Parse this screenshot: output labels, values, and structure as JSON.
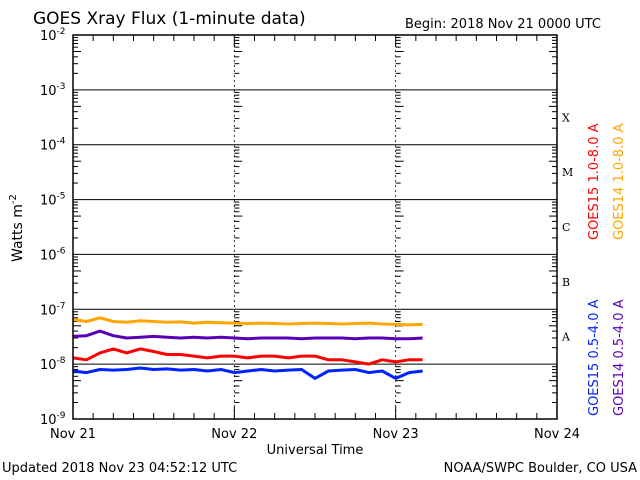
{
  "chart_data": {
    "type": "line",
    "title": "GOES Xray Flux (1-minute data)",
    "begin_label": "Begin:  2018 Nov 21 0000 UTC",
    "xlabel": "Universal Time",
    "ylabel": "Watts m",
    "ylabel_sup": "-2",
    "x_ticks": [
      "Nov 21",
      "Nov 22",
      "Nov 23",
      "Nov 24"
    ],
    "x_range_hours": [
      0,
      72
    ],
    "y_scale": "log",
    "ylim": [
      1e-09,
      0.01
    ],
    "y_ticks": [
      {
        "base": "10",
        "exp": "-2"
      },
      {
        "base": "10",
        "exp": "-3"
      },
      {
        "base": "10",
        "exp": "-4"
      },
      {
        "base": "10",
        "exp": "-5"
      },
      {
        "base": "10",
        "exp": "-6"
      },
      {
        "base": "10",
        "exp": "-7"
      },
      {
        "base": "10",
        "exp": "-8"
      },
      {
        "base": "10",
        "exp": "-9"
      }
    ],
    "flare_classes": [
      "X",
      "M",
      "C",
      "B",
      "A"
    ],
    "grid": true,
    "x_hours": [
      0,
      2,
      4,
      6,
      8,
      10,
      12,
      14,
      16,
      18,
      20,
      22,
      24,
      26,
      28,
      30,
      32,
      34,
      36,
      38,
      40,
      42,
      44,
      46,
      48,
      50,
      52
    ],
    "series": [
      {
        "name": "GOES15 1.0-8.0 A",
        "color": "#ff0000",
        "values": [
          1.3e-08,
          1.2e-08,
          1.6e-08,
          1.9e-08,
          1.6e-08,
          1.9e-08,
          1.7e-08,
          1.5e-08,
          1.5e-08,
          1.4e-08,
          1.3e-08,
          1.4e-08,
          1.4e-08,
          1.3e-08,
          1.4e-08,
          1.4e-08,
          1.3e-08,
          1.4e-08,
          1.4e-08,
          1.2e-08,
          1.2e-08,
          1.1e-08,
          1e-08,
          1.2e-08,
          1.1e-08,
          1.2e-08,
          1.2e-08
        ]
      },
      {
        "name": "GOES14 1.0-8.0 A",
        "color": "#ffa500",
        "values": [
          6.5e-08,
          6e-08,
          7e-08,
          6e-08,
          5.8e-08,
          6.2e-08,
          6e-08,
          5.8e-08,
          5.9e-08,
          5.6e-08,
          5.8e-08,
          5.7e-08,
          5.6e-08,
          5.5e-08,
          5.6e-08,
          5.5e-08,
          5.4e-08,
          5.5e-08,
          5.6e-08,
          5.5e-08,
          5.4e-08,
          5.5e-08,
          5.6e-08,
          5.4e-08,
          5.3e-08,
          5.2e-08,
          5.3e-08
        ]
      },
      {
        "name": "GOES15 0.5-4.0 A",
        "color": "#0022ff",
        "values": [
          7.5e-09,
          7e-09,
          8e-09,
          7.8e-09,
          8e-09,
          8.5e-09,
          8e-09,
          8.2e-09,
          7.8e-09,
          8e-09,
          7.5e-09,
          8e-09,
          7e-09,
          7.5e-09,
          8e-09,
          7.5e-09,
          7.8e-09,
          8e-09,
          5.5e-09,
          7.5e-09,
          7.8e-09,
          8e-09,
          7e-09,
          7.5e-09,
          5.5e-09,
          7e-09,
          7.5e-09
        ]
      },
      {
        "name": "GOES14 0.5-4.0 A",
        "color": "#5a00b4",
        "values": [
          3.2e-08,
          3.3e-08,
          4e-08,
          3.3e-08,
          3e-08,
          3.1e-08,
          3.2e-08,
          3.1e-08,
          3e-08,
          3.1e-08,
          3e-08,
          3.1e-08,
          3e-08,
          2.9e-08,
          3e-08,
          3e-08,
          3e-08,
          2.9e-08,
          3e-08,
          3e-08,
          3e-08,
          2.9e-08,
          3e-08,
          3e-08,
          2.9e-08,
          2.9e-08,
          3e-08
        ]
      }
    ]
  },
  "footer": {
    "updated": "Updated 2018 Nov 23 04:52:12 UTC",
    "source": "NOAA/SWPC Boulder, CO USA"
  }
}
